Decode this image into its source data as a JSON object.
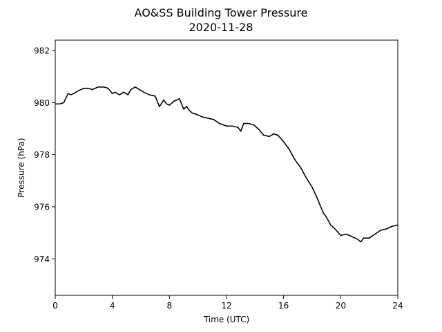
{
  "chart_data": {
    "type": "line",
    "title": "AO&SS Building Tower Pressure",
    "subtitle": "2020-11-28",
    "xlabel": "Time (UTC)",
    "ylabel": "Pressure (hPa)",
    "xlim": [
      0,
      24
    ],
    "ylim": [
      972.6,
      982.4
    ],
    "xticks": [
      0,
      4,
      8,
      12,
      16,
      20,
      24
    ],
    "yticks": [
      974,
      976,
      978,
      980,
      982
    ],
    "grid": false,
    "line_color": "#000000",
    "series": [
      {
        "x": [
          0,
          0.3,
          0.6,
          0.9,
          1.1,
          1.3,
          1.6,
          2.0,
          2.3,
          2.6,
          3.0,
          3.4,
          3.7,
          4.0,
          4.2,
          4.5,
          4.8,
          5.1,
          5.3,
          5.6,
          5.9,
          6.2,
          6.6,
          7.0,
          7.3,
          7.6,
          7.8,
          8.0,
          8.3,
          8.7,
          9.0,
          9.2,
          9.4,
          9.6,
          9.9,
          10.3,
          10.7,
          11.1,
          11.5,
          12.0,
          12.4,
          12.8,
          13.0,
          13.2,
          13.5,
          13.9,
          14.3,
          14.6,
          15.0,
          15.3,
          15.6,
          16.0,
          16.4,
          16.8,
          17.2,
          17.6,
          18.0,
          18.3,
          18.6,
          18.8,
          19.0,
          19.3,
          19.6,
          20.0,
          20.4,
          20.8,
          21.2,
          21.4,
          21.6,
          22.0,
          22.4,
          22.8,
          23.2,
          23.6,
          24.0
        ],
        "y": [
          979.95,
          979.95,
          980.0,
          980.35,
          980.3,
          980.35,
          980.45,
          980.55,
          980.55,
          980.5,
          980.6,
          980.6,
          980.55,
          980.35,
          980.4,
          980.3,
          980.4,
          980.3,
          980.5,
          980.6,
          980.5,
          980.4,
          980.3,
          980.25,
          979.85,
          980.1,
          979.95,
          979.9,
          980.05,
          980.15,
          979.75,
          979.85,
          979.7,
          979.6,
          979.55,
          979.45,
          979.4,
          979.35,
          979.2,
          979.1,
          979.1,
          979.05,
          978.9,
          979.2,
          979.2,
          979.15,
          978.95,
          978.75,
          978.7,
          978.8,
          978.75,
          978.5,
          978.2,
          977.8,
          977.5,
          977.1,
          976.75,
          976.4,
          976.0,
          975.75,
          975.6,
          975.3,
          975.15,
          974.9,
          974.95,
          974.85,
          974.75,
          974.65,
          974.8,
          974.8,
          974.95,
          975.1,
          975.15,
          975.25,
          975.3
        ]
      }
    ]
  }
}
